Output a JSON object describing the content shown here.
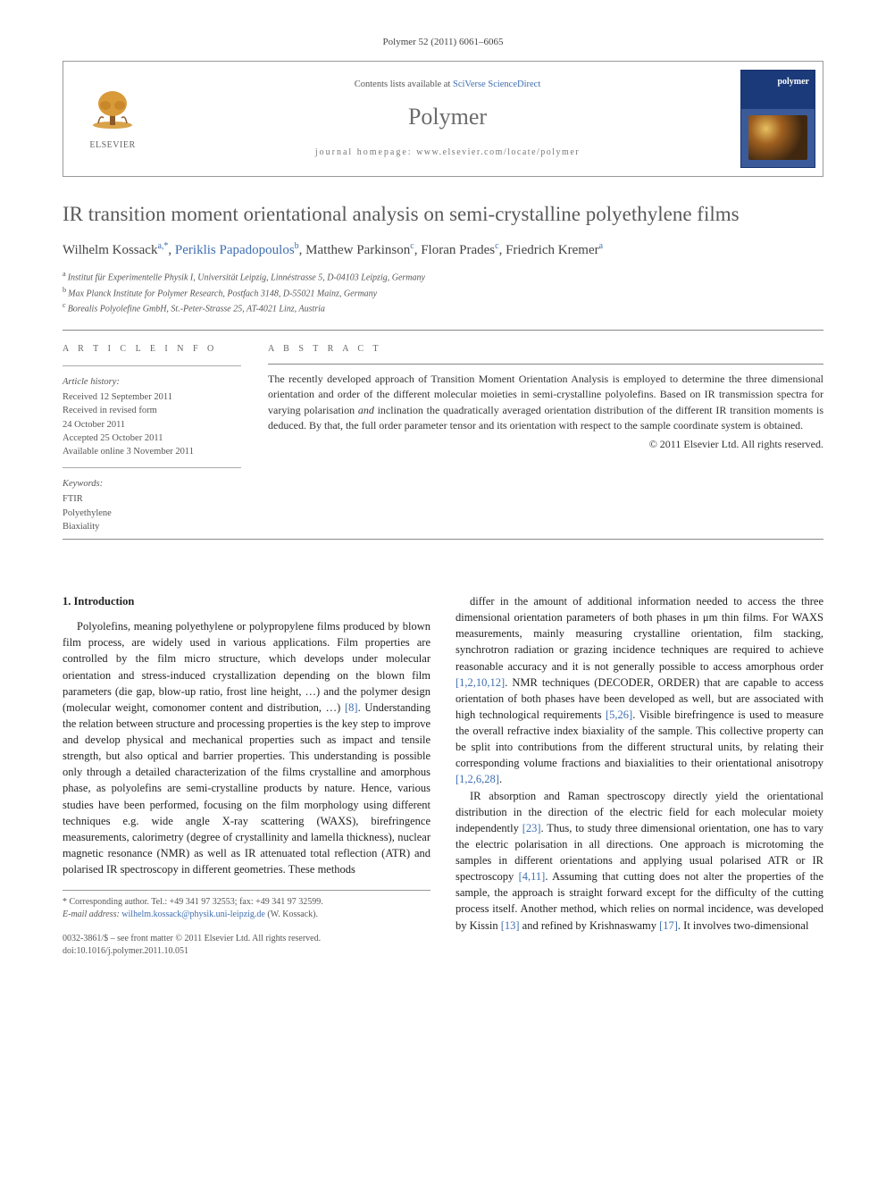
{
  "citation": "Polymer 52 (2011) 6061–6065",
  "header": {
    "publisher_name": "ELSEVIER",
    "contents_prefix": "Contents lists available at ",
    "contents_link": "SciVerse ScienceDirect",
    "journal_name": "Polymer",
    "homepage_label": "journal homepage: ",
    "homepage_url": "www.elsevier.com/locate/polymer",
    "cover_title": "polymer"
  },
  "article": {
    "title": "IR transition moment orientational analysis on semi-crystalline polyethylene films",
    "authors": [
      {
        "name": "Wilhelm Kossack",
        "aff": "a,",
        "star": "*"
      },
      {
        "name": "Periklis Papadopoulos",
        "aff": "b"
      },
      {
        "name": "Matthew Parkinson",
        "aff": "c"
      },
      {
        "name": "Floran Prades",
        "aff": "c"
      },
      {
        "name": "Friedrich Kremer",
        "aff": "a"
      }
    ],
    "affiliations": [
      {
        "sup": "a",
        "text": "Institut für Experimentelle Physik I, Universität Leipzig, Linnéstrasse 5, D-04103 Leipzig, Germany"
      },
      {
        "sup": "b",
        "text": "Max Planck Institute for Polymer Research, Postfach 3148, D-55021 Mainz, Germany"
      },
      {
        "sup": "c",
        "text": "Borealis Polyolefine GmbH, St.-Peter-Strasse 25, AT-4021 Linz, Austria"
      }
    ]
  },
  "info": {
    "heading": "A R T I C L E   I N F O",
    "history_label": "Article history:",
    "history": [
      "Received 12 September 2011",
      "Received in revised form",
      "24 October 2011",
      "Accepted 25 October 2011",
      "Available online 3 November 2011"
    ],
    "keywords_label": "Keywords:",
    "keywords": [
      "FTIR",
      "Polyethylene",
      "Biaxiality"
    ]
  },
  "abstract": {
    "heading": "A B S T R A C T",
    "text": "The recently developed approach of Transition Moment Orientation Analysis is employed to determine the three dimensional orientation and order of the different molecular moieties in semi-crystalline polyolefins. Based on IR transmission spectra for varying polarisation and inclination the quadratically averaged orientation distribution of the different IR transition moments is deduced. By that, the full order parameter tensor and its orientation with respect to the sample coordinate system is obtained.",
    "copyright": "© 2011 Elsevier Ltd. All rights reserved."
  },
  "body": {
    "section_number": "1.",
    "section_title": "Introduction",
    "col1_para1": "Polyolefins, meaning polyethylene or polypropylene films produced by blown film process, are widely used in various applications. Film properties are controlled by the film micro structure, which develops under molecular orientation and stress-induced crystallization depending on the blown film parameters (die gap, blow-up ratio, frost line height, …) and the polymer design (molecular weight, comonomer content and distribution, …) [8]. Understanding the relation between structure and processing properties is the key step to improve and develop physical and mechanical properties such as impact and tensile strength, but also optical and barrier properties. This understanding is possible only through a detailed characterization of the films crystalline and amorphous phase, as polyolefins are semi-crystalline products by nature. Hence, various studies have been performed, focusing on the film morphology using different techniques e.g. wide angle X-ray scattering (WAXS), birefringence measurements, calorimetry (degree of crystallinity and lamella thickness), nuclear magnetic resonance (NMR) as well as IR attenuated total reflection (ATR) and polarised IR spectroscopy in different geometries. These methods",
    "col2_para1": "differ in the amount of additional information needed to access the three dimensional orientation parameters of both phases in μm thin films. For WAXS measurements, mainly measuring crystalline orientation, film stacking, synchrotron radiation or grazing incidence techniques are required to achieve reasonable accuracy and it is not generally possible to access amorphous order [1,2,10,12]. NMR techniques (DECODER, ORDER) that are capable to access orientation of both phases have been developed as well, but are associated with high technological requirements [5,26]. Visible birefringence is used to measure the overall refractive index biaxiality of the sample. This collective property can be split into contributions from the different structural units, by relating their corresponding volume fractions and biaxialities to their orientational anisotropy [1,2,6,28].",
    "col2_para2": "IR absorption and Raman spectroscopy directly yield the orientational distribution in the direction of the electric field for each molecular moiety independently [23]. Thus, to study three dimensional orientation, one has to vary the electric polarisation in all directions. One approach is microtoming the samples in different orientations and applying usual polarised ATR or IR spectroscopy [4,11]. Assuming that cutting does not alter the properties of the sample, the approach is straight forward except for the difficulty of the cutting process itself. Another method, which relies on normal incidence, was developed by Kissin [13] and refined by Krishnaswamy [17]. It involves two-dimensional"
  },
  "corresponding": {
    "label": "* Corresponding author. Tel.: +49 341 97 32553; fax: +49 341 97 32599.",
    "email_label": "E-mail address: ",
    "email": "wilhelm.kossack@physik.uni-leipzig.de",
    "person": " (W. Kossack)."
  },
  "footer": {
    "line1": "0032-3861/$ – see front matter © 2011 Elsevier Ltd. All rights reserved.",
    "line2": "doi:10.1016/j.polymer.2011.10.051"
  },
  "refs": {
    "r8": "[8]",
    "r1_2_10_12": "[1,2,10,12]",
    "r5_26": "[5,26]",
    "r1_2_6_28": "[1,2,6,28]",
    "r23": "[23]",
    "r4_11": "[4,11]",
    "r13": "[13]",
    "r17": "[17]"
  }
}
